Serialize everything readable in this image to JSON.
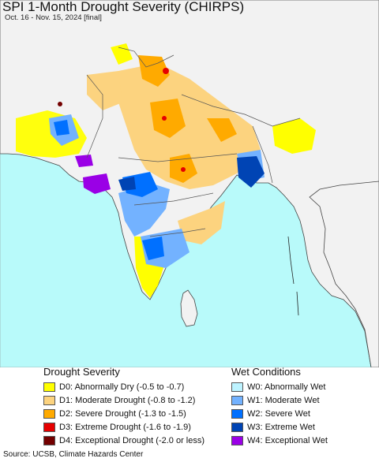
{
  "title": "SPI 1-Month Drought Severity (CHIRPS)",
  "subtitle": "Oct. 16 - Nov. 15, 2024 [final]",
  "source": "Source: UCSB, Climate Hazards Center",
  "colors": {
    "ocean": "#b8fafa",
    "land_neutral": "#f2f2f2",
    "outside_land": "#f2f2f2",
    "border": "#444444",
    "D0": "#ffff00",
    "D1": "#fcd37f",
    "D2": "#ffaa00",
    "D3": "#e60000",
    "D4": "#730000",
    "W0": "#aafaff",
    "W1": "#73b2ff",
    "W2": "#0070ff",
    "W3": "#0044b4",
    "W4": "#9a00e6"
  },
  "legend": {
    "drought_heading": "Drought Severity",
    "wet_heading": "Wet Conditions",
    "drought_items": [
      {
        "key": "D0",
        "label": "D0: Abnormally Dry (-0.5 to -0.7)",
        "color": "#ffff00"
      },
      {
        "key": "D1",
        "label": "D1: Moderate Drought (-0.8 to -1.2)",
        "color": "#fcd37f"
      },
      {
        "key": "D2",
        "label": "D2: Severe Drought (-1.3 to -1.5)",
        "color": "#ffaa00"
      },
      {
        "key": "D3",
        "label": "D3: Extreme Drought (-1.6 to -1.9)",
        "color": "#e60000"
      },
      {
        "key": "D4",
        "label": "D4: Exceptional Drought (-2.0 or less)",
        "color": "#730000"
      }
    ],
    "wet_items": [
      {
        "key": "W0",
        "label": "W0: Abnormally Wet",
        "color": "#bdf3ff"
      },
      {
        "key": "W1",
        "label": "W1: Moderate Wet",
        "color": "#73b2ff"
      },
      {
        "key": "W2",
        "label": "W2: Severe Wet",
        "color": "#0070ff"
      },
      {
        "key": "W3",
        "label": "W3: Extreme Wet",
        "color": "#0044b4"
      },
      {
        "key": "W4",
        "label": "W4: Exceptional Wet",
        "color": "#9a00e6"
      }
    ]
  }
}
